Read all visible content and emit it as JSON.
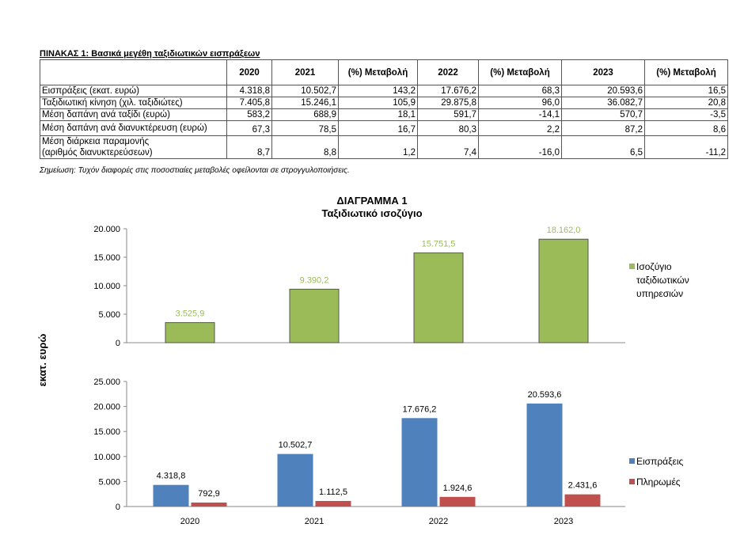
{
  "table": {
    "title": "ΠΙΝΑΚΑΣ 1: Βασικά μεγέθη ταξιδιωτικών εισπράξεων",
    "headers": [
      "",
      "2020",
      "2021",
      "(%) Μεταβολή",
      "2022",
      "(%) Μεταβολή",
      "2023",
      "(%) Μεταβολή"
    ],
    "rows": [
      [
        "Εισπράξεις (εκατ. ευρώ)",
        "4.318,8",
        "10.502,7",
        "143,2",
        "17.676,2",
        "68,3",
        "20.593,6",
        "16,5"
      ],
      [
        "Ταξιδιωτική κίνηση (χιλ. ταξιδιώτες)",
        "7.405,8",
        "15.246,1",
        "105,9",
        "29.875,8",
        "96,0",
        "36.082,7",
        "20,8"
      ],
      [
        "Μέση δαπάνη ανά ταξίδι (ευρώ)",
        "583,2",
        "688,9",
        "18,1",
        "591,7",
        "-14,1",
        "570,7",
        "-3,5"
      ],
      [
        "Μέση δαπάνη ανά διανυκτέρευση (ευρώ)",
        "67,3",
        "78,5",
        "16,7",
        "80,3",
        "2,2",
        "87,2",
        "8,6"
      ],
      [
        "Μέση διάρκεια παραμονής\n(αριθμός διανυκτερεύσεων)",
        "8,7",
        "8,8",
        "1,2",
        "7,4",
        "-16,0",
        "6,5",
        "-11,2"
      ]
    ],
    "note": "Σημείωση: Τυχόν διαφορές στις ποσοστιαίες μεταβολές οφείλονται σε στρογγυλοποιήσεις."
  },
  "chart_data": [
    {
      "type": "bar",
      "title": "ΔΙΑΓΡΑΜΜΑ 1",
      "subtitle": "Ταξιδιωτικό ισοζύγιο",
      "ylabel": "εκατ. ευρώ",
      "categories": [
        "2020",
        "2021",
        "2022",
        "2023"
      ],
      "ylim": [
        0,
        20000
      ],
      "yticks": [
        "0",
        "5.000",
        "10.000",
        "15.000",
        "20.000"
      ],
      "legend": "right",
      "series": [
        {
          "name": "Ισοζύγιο ταξιδιωτικών υπηρεσιών",
          "color": "#9bbb59",
          "values": [
            3525.9,
            9390.2,
            15751.5,
            18162.0
          ],
          "labels": [
            "3.525,9",
            "9.390,2",
            "15.751,5",
            "18.162,0"
          ]
        }
      ]
    },
    {
      "type": "bar",
      "categories": [
        "2020",
        "2021",
        "2022",
        "2023"
      ],
      "ylim": [
        0,
        25000
      ],
      "yticks": [
        "0",
        "5.000",
        "10.000",
        "15.000",
        "20.000",
        "25.000"
      ],
      "legend": "right",
      "series": [
        {
          "name": "Εισπράξεις",
          "color": "#4f81bd",
          "values": [
            4318.8,
            10502.7,
            17676.2,
            20593.6
          ],
          "labels": [
            "4.318,8",
            "10.502,7",
            "17.676,2",
            "20.593,6"
          ]
        },
        {
          "name": "Πληρωμές",
          "color": "#c0504d",
          "values": [
            792.9,
            1112.5,
            1924.6,
            2431.6
          ],
          "labels": [
            "792,9",
            "1.112,5",
            "1.924,6",
            "2.431,6"
          ]
        }
      ]
    }
  ]
}
